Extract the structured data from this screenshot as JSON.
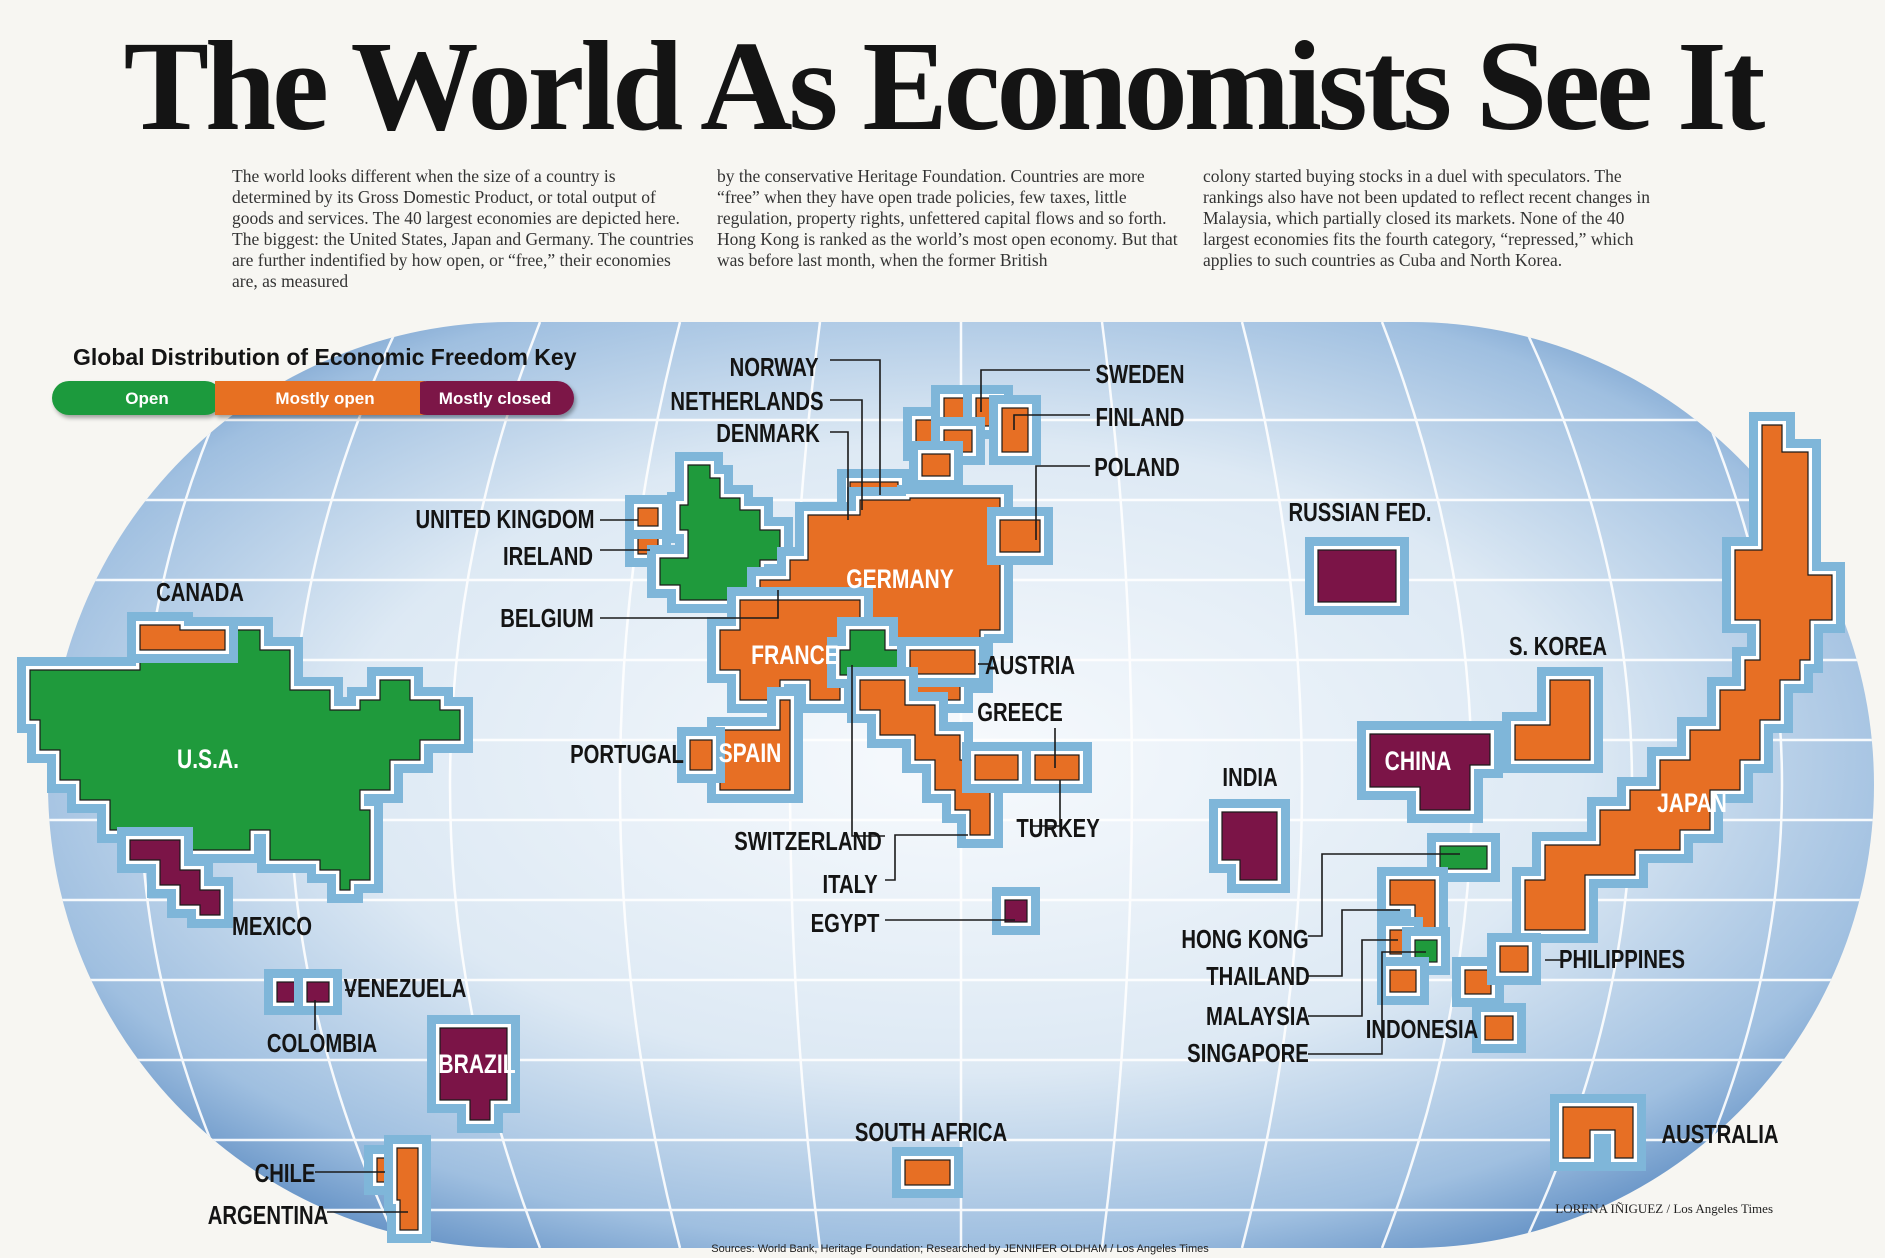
{
  "title": "The World As Economists See It",
  "intro": {
    "col1": "The world looks different when the size of  a country is determined by its Gross Domestic Product, or total output of goods and services. The 40 largest economies are depicted here. The biggest: the United States, Japan and Germany. The countries are further indentified by how open, or “free,” their economies are, as measured",
    "col2": "by the conservative Heritage Foundation. Countries are more “free” when they have open trade policies, few taxes, little regulation, property rights, unfettered capital flows and so forth. Hong Kong is ranked as the world’s most open economy. But that was before last month, when the former British",
    "col3": "colony started buying stocks in a duel with speculators. The rankings also have not been updated to reflect recent changes in Malaysia, which partially closed its markets. None of the 40 largest economies fits the fourth category, “repressed,” which applies to such countries as Cuba and North Korea."
  },
  "key": {
    "title": "Global Distribution of Economic Freedom Key",
    "open": "Open",
    "mostly_open": "Mostly open",
    "mostly_closed": "Mostly closed"
  },
  "colors": {
    "open": "#1f9a3c",
    "mostly_open": "#e76f24",
    "mostly_closed": "#7b1447",
    "ocean_light": "#f4f8fb",
    "ocean_dark": "#5d8cc2",
    "halo": "#7fb6d9"
  },
  "countries": {
    "usa": {
      "label": "U.S.A.",
      "freedom": "open"
    },
    "canada": {
      "label": "CANADA",
      "freedom": "mostly_open"
    },
    "mexico": {
      "label": "MEXICO",
      "freedom": "mostly_closed"
    },
    "venezuela": {
      "label": "VENEZUELA",
      "freedom": "mostly_closed"
    },
    "colombia": {
      "label": "COLOMBIA",
      "freedom": "mostly_closed"
    },
    "brazil": {
      "label": "BRAZIL",
      "freedom": "mostly_closed"
    },
    "chile": {
      "label": "CHILE",
      "freedom": "mostly_open"
    },
    "argentina": {
      "label": "ARGENTINA",
      "freedom": "mostly_open"
    },
    "united_kingdom": {
      "label": "UNITED KINGDOM",
      "freedom": "open"
    },
    "ireland": {
      "label": "IRELAND",
      "freedom": "mostly_open"
    },
    "belgium": {
      "label": "BELGIUM",
      "freedom": "mostly_open"
    },
    "netherlands": {
      "label": "NETHERLANDS",
      "freedom": "open"
    },
    "norway": {
      "label": "NORWAY",
      "freedom": "mostly_open"
    },
    "denmark": {
      "label": "DENMARK",
      "freedom": "mostly_open"
    },
    "sweden": {
      "label": "SWEDEN",
      "freedom": "mostly_open"
    },
    "finland": {
      "label": "FINLAND",
      "freedom": "mostly_open"
    },
    "poland": {
      "label": "POLAND",
      "freedom": "mostly_open"
    },
    "germany": {
      "label": "GERMANY",
      "freedom": "mostly_open"
    },
    "france": {
      "label": "FRANCE",
      "freedom": "mostly_open"
    },
    "austria": {
      "label": "AUSTRIA",
      "freedom": "mostly_open"
    },
    "switzerland": {
      "label": "SWITZERLAND",
      "freedom": "open"
    },
    "italy": {
      "label": "ITALY",
      "freedom": "mostly_open"
    },
    "spain": {
      "label": "SPAIN",
      "freedom": "mostly_open"
    },
    "portugal": {
      "label": "PORTUGAL",
      "freedom": "mostly_open"
    },
    "greece": {
      "label": "GREECE",
      "freedom": "mostly_open"
    },
    "turkey": {
      "label": "TURKEY",
      "freedom": "mostly_open"
    },
    "egypt": {
      "label": "EGYPT",
      "freedom": "mostly_closed"
    },
    "south_africa": {
      "label": "SOUTH AFRICA",
      "freedom": "mostly_open"
    },
    "russia": {
      "label": "RUSSIAN FED.",
      "freedom": "mostly_closed"
    },
    "india": {
      "label": "INDIA",
      "freedom": "mostly_closed"
    },
    "china": {
      "label": "CHINA",
      "freedom": "mostly_closed"
    },
    "s_korea": {
      "label": "S. KOREA",
      "freedom": "mostly_open"
    },
    "japan": {
      "label": "JAPAN",
      "freedom": "mostly_open"
    },
    "hong_kong": {
      "label": "HONG KONG",
      "freedom": "open"
    },
    "thailand": {
      "label": "THAILAND",
      "freedom": "mostly_open"
    },
    "malaysia": {
      "label": "MALAYSIA",
      "freedom": "mostly_open"
    },
    "singapore": {
      "label": "SINGAPORE",
      "freedom": "open"
    },
    "indonesia": {
      "label": "INDONESIA",
      "freedom": "mostly_open"
    },
    "philippines": {
      "label": "PHILIPPINES",
      "freedom": "mostly_open"
    },
    "australia": {
      "label": "AUSTRALIA",
      "freedom": "mostly_open"
    }
  },
  "credit": "LORENA IÑIGUEZ / Los Angeles Times",
  "sources": "Sources: World Bank, Heritage Foundation; Researched by  JENNIFER OLDHAM / Los Angeles Times"
}
